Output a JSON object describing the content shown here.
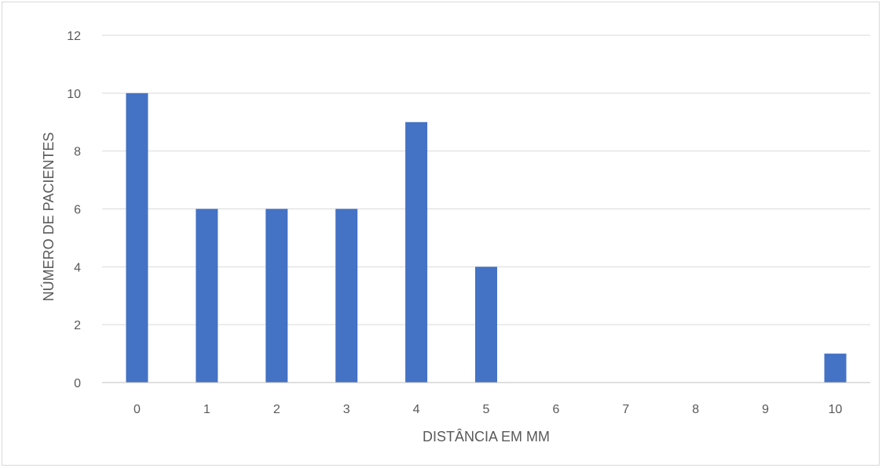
{
  "chart_data": {
    "type": "bar",
    "categories": [
      "0",
      "1",
      "2",
      "3",
      "4",
      "5",
      "6",
      "7",
      "8",
      "9",
      "10"
    ],
    "values": [
      10,
      6,
      6,
      6,
      9,
      4,
      0,
      0,
      0,
      0,
      1
    ],
    "title": "",
    "xlabel": "DISTÂNCIA EM MM",
    "ylabel": "NÚMERO DE PACIENTES",
    "ylim": [
      0,
      12
    ],
    "yticks": [
      0,
      2,
      4,
      6,
      8,
      10,
      12
    ],
    "grid": true,
    "legend": "none",
    "bar_color": "#4472C4",
    "grid_color": "#d9d9d9",
    "axis_color": "#bfbfbf"
  }
}
